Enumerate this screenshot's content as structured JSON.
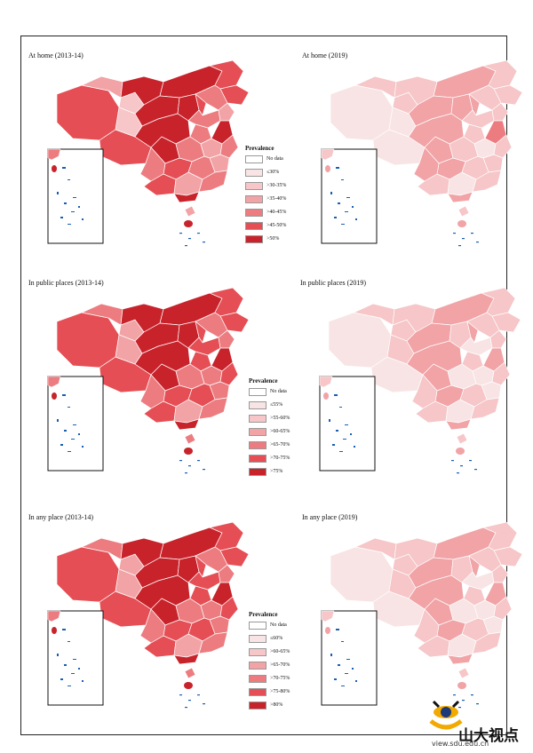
{
  "panels": [
    {
      "id": "p1",
      "title": "At home (2013-14)",
      "regions": [
        5,
        5,
        3,
        2,
        2,
        6,
        6,
        6,
        6,
        5,
        5,
        4,
        5,
        4,
        3,
        4,
        6,
        6,
        4,
        3,
        6,
        4,
        3,
        4,
        5,
        4,
        5,
        3,
        4,
        6,
        3
      ]
    },
    {
      "id": "p2",
      "title": "At home (2019)",
      "regions": [
        1,
        1,
        2,
        2,
        1,
        2,
        3,
        3,
        3,
        2,
        2,
        2,
        3,
        2,
        2,
        2,
        3,
        3,
        2,
        1,
        4,
        2,
        2,
        2,
        3,
        3,
        2,
        1,
        2,
        3,
        2
      ]
    },
    {
      "id": "p3",
      "title": "In public places (2013-14)",
      "regions": [
        5,
        5,
        4,
        3,
        3,
        6,
        6,
        6,
        6,
        5,
        5,
        4,
        5,
        5,
        4,
        5,
        6,
        6,
        4,
        4,
        6,
        5,
        4,
        5,
        5,
        4,
        5,
        3,
        4,
        6,
        4
      ]
    },
    {
      "id": "p4",
      "title": "In public places (2019)",
      "regions": [
        1,
        1,
        2,
        2,
        2,
        2,
        3,
        3,
        2,
        2,
        2,
        2,
        3,
        1,
        2,
        2,
        3,
        3,
        1,
        1,
        3,
        2,
        1,
        2,
        3,
        2,
        2,
        1,
        2,
        3,
        2
      ]
    },
    {
      "id": "p5",
      "title": "In any place (2013-14)",
      "regions": [
        5,
        5,
        4,
        3,
        3,
        6,
        6,
        6,
        6,
        5,
        5,
        4,
        5,
        5,
        4,
        5,
        6,
        6,
        4,
        4,
        6,
        5,
        4,
        5,
        5,
        4,
        5,
        3,
        4,
        6,
        4
      ]
    },
    {
      "id": "p6",
      "title": "In any place (2019)",
      "regions": [
        1,
        1,
        2,
        2,
        2,
        2,
        3,
        3,
        2,
        2,
        2,
        2,
        3,
        1,
        2,
        2,
        3,
        3,
        1,
        1,
        3,
        2,
        1,
        2,
        3,
        2,
        2,
        1,
        2,
        3,
        2
      ]
    }
  ],
  "legends": [
    {
      "title": "Prevalence",
      "items": [
        "No data",
        "≤30%",
        ">30-35%",
        ">35-40%",
        ">40-45%",
        ">45-50%",
        ">50%"
      ]
    },
    {
      "title": "Prevalence",
      "items": [
        "No data",
        "≤55%",
        ">55-60%",
        ">60-65%",
        ">65-70%",
        ">70-75%",
        ">75%"
      ]
    },
    {
      "title": "Prevalence",
      "items": [
        "No data",
        "≤60%",
        ">60-65%",
        ">65-70%",
        ">70-75%",
        ">75-80%",
        ">80%"
      ]
    }
  ],
  "colors": [
    "#ffffff",
    "#f8e4e4",
    "#f6c6c8",
    "#f1a3a6",
    "#ec7c80",
    "#e54e54",
    "#c8232b"
  ],
  "inset_sea_color": "#1a5fb4",
  "watermark": {
    "text": "山大视点",
    "url": "view.sdu.edu.cn"
  }
}
